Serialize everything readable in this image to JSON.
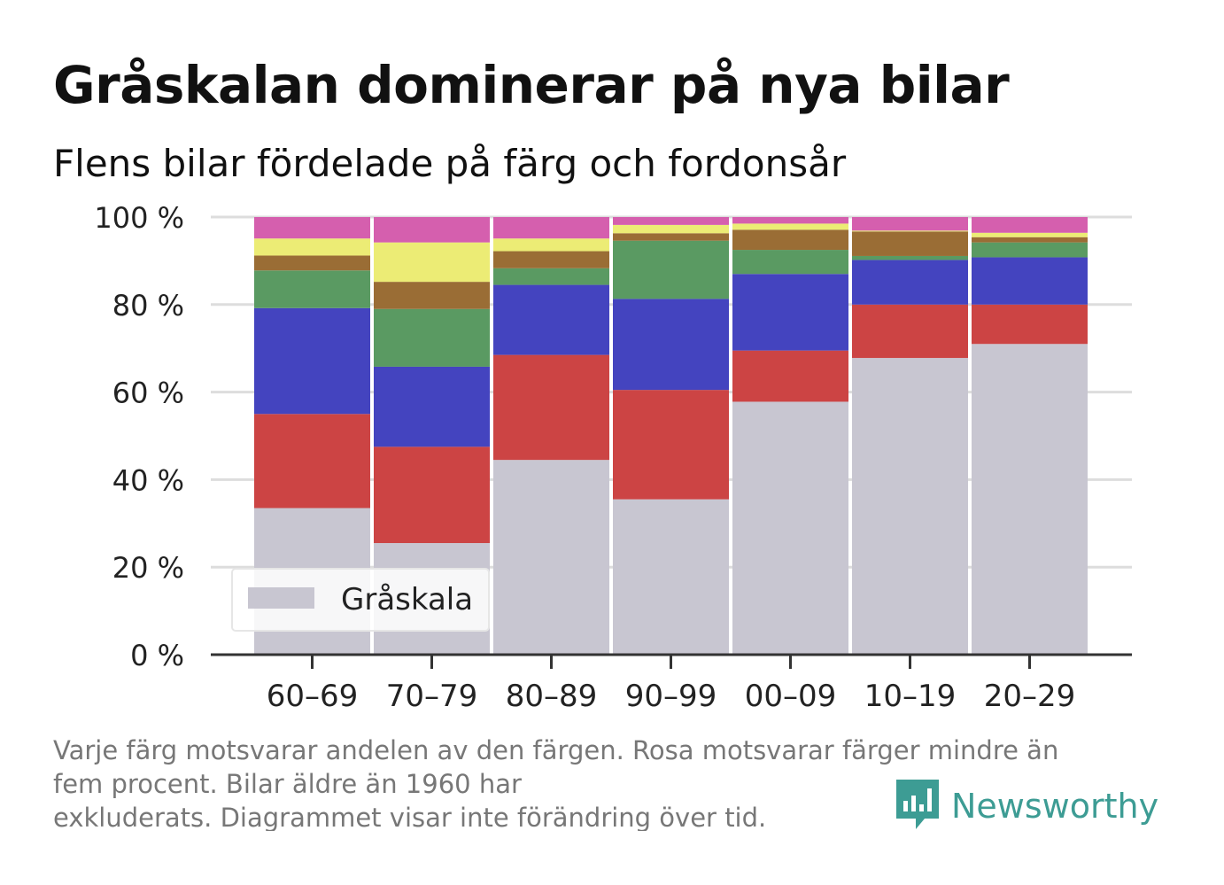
{
  "title": "Gråskalan dominerar på nya bilar",
  "subtitle": "Flens bilar fördelade på färg och fordonsår",
  "footnote": {
    "line1": "Varje färg motsvarar andelen av den färgen. Rosa motsvarar färger mindre än",
    "line2": "fem procent. Bilar äldre än 1960 har",
    "line3": "exkluderats. Diagrammet visar inte förändring över tid."
  },
  "brand": {
    "name": "Newsworthy",
    "icon": "newsworthy-chart-icon",
    "color": "#3d9c94"
  },
  "legend": {
    "label": "Gråskala",
    "placement": "bottom-left"
  },
  "chart_data": {
    "type": "bar",
    "stacked": true,
    "categories": [
      "60–69",
      "70–79",
      "80–89",
      "90–99",
      "00–09",
      "10–19",
      "20–29"
    ],
    "ylim": [
      0,
      100
    ],
    "yticks": [
      0,
      20,
      40,
      60,
      80,
      100
    ],
    "ytick_labels": [
      "0 %",
      "20 %",
      "40 %",
      "60 %",
      "80 %",
      "100 %"
    ],
    "grid": true,
    "legend_shown": [
      "Gråskala"
    ],
    "series": [
      {
        "name": "Gråskala",
        "color": "#c8c6d1",
        "values": [
          33.5,
          25.5,
          44.5,
          35.5,
          57.8,
          67.8,
          71.0
        ]
      },
      {
        "color": "#cc4444",
        "values": [
          21.5,
          22.0,
          24.0,
          25.0,
          11.7,
          12.2,
          9.0
        ]
      },
      {
        "color": "#4444bf",
        "values": [
          24.2,
          18.3,
          16.0,
          20.8,
          17.5,
          10.2,
          10.8
        ]
      },
      {
        "color": "#5a9a62",
        "values": [
          8.6,
          13.2,
          3.8,
          13.3,
          5.5,
          0.9,
          3.4
        ]
      },
      {
        "color": "#9a6d35",
        "values": [
          3.4,
          6.2,
          3.9,
          1.7,
          4.6,
          5.6,
          1.2
        ]
      },
      {
        "color": "#ecec75",
        "values": [
          3.9,
          9.0,
          2.9,
          1.9,
          1.4,
          0.2,
          1.0
        ]
      },
      {
        "color": "#d55fae",
        "values": [
          4.9,
          5.8,
          4.9,
          1.8,
          1.5,
          3.1,
          3.6
        ]
      }
    ]
  }
}
